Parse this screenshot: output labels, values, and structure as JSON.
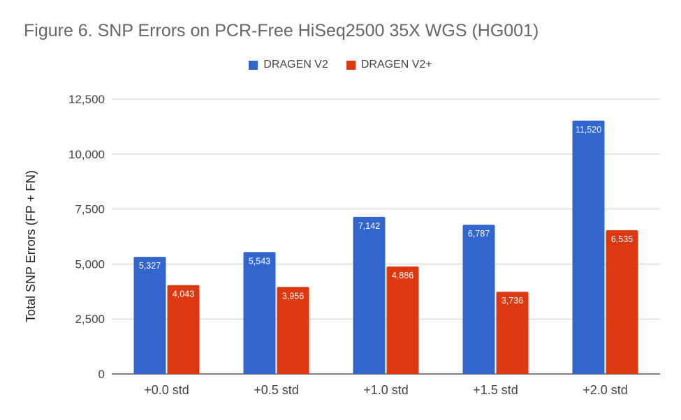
{
  "chart_data": {
    "type": "bar",
    "title": "Figure 6. SNP Errors on PCR-Free HiSeq2500 35X WGS (HG001)",
    "xlabel": "",
    "ylabel": "Total SNP Errors (FP + FN)",
    "categories": [
      "+0.0 std",
      "+0.5 std",
      "+1.0 std",
      "+1.5 std",
      "+2.0 std"
    ],
    "series": [
      {
        "name": "DRAGEN V2",
        "color": "#3366cc",
        "values": [
          5327,
          5543,
          7142,
          6787,
          11520
        ],
        "labels": [
          "5,327",
          "5,543",
          "7,142",
          "6,787",
          "11,520"
        ]
      },
      {
        "name": "DRAGEN V2+",
        "color": "#dc3912",
        "values": [
          4043,
          3956,
          4886,
          3736,
          6535
        ],
        "labels": [
          "4,043",
          "3,956",
          "4,886",
          "3,736",
          "6,535"
        ]
      }
    ],
    "ylim": [
      0,
      12500
    ],
    "yticks": [
      0,
      2500,
      5000,
      7500,
      10000,
      12500
    ],
    "ytick_labels": [
      "0",
      "2,500",
      "5,000",
      "7,500",
      "10,000",
      "12,500"
    ],
    "grid": true,
    "legend_position": "top"
  }
}
